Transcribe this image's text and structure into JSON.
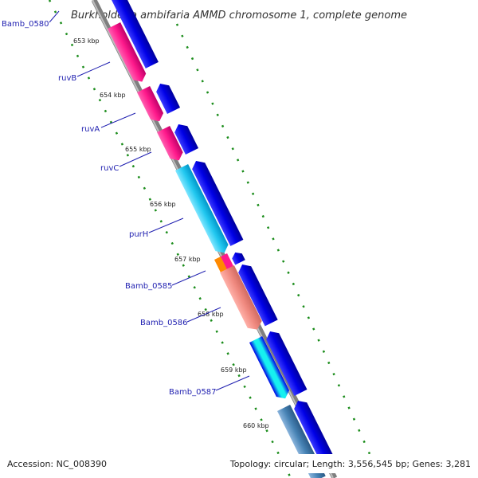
{
  "map": {
    "title": "Burkholderia ambifaria AMMD chromosome 1, complete genome",
    "accession": "Accession: NC_008390",
    "summary": "Topology: circular; Length: 3,556,545 bp; Genes: 3,281",
    "kbp_labels": [
      "653 kbp",
      "654 kbp",
      "655 kbp",
      "656 kbp",
      "657 kbp",
      "658 kbp",
      "659 kbp",
      "660 kbp"
    ],
    "genes": [
      {
        "name": "Bamb_0580"
      },
      {
        "name": "ruvB"
      },
      {
        "name": "ruvA"
      },
      {
        "name": "ruvC"
      },
      {
        "name": "purH"
      },
      {
        "name": "Bamb_0585"
      },
      {
        "name": "Bamb_0586"
      },
      {
        "name": "Bamb_0587"
      }
    ],
    "colors": {
      "backbone": "#7f7f7f",
      "strand_fwd": "#0000e6",
      "ruv_genes": "#ff1a8c",
      "purH": "#22c8f0",
      "bamb_0585": "#ff8a00",
      "bamb_0586": "#f08a80",
      "bamb_0587": "#16f0f0",
      "downstream": "#4682b4",
      "tick_green": "#1a8c1a",
      "label_blue": "#1f1fb0"
    }
  }
}
